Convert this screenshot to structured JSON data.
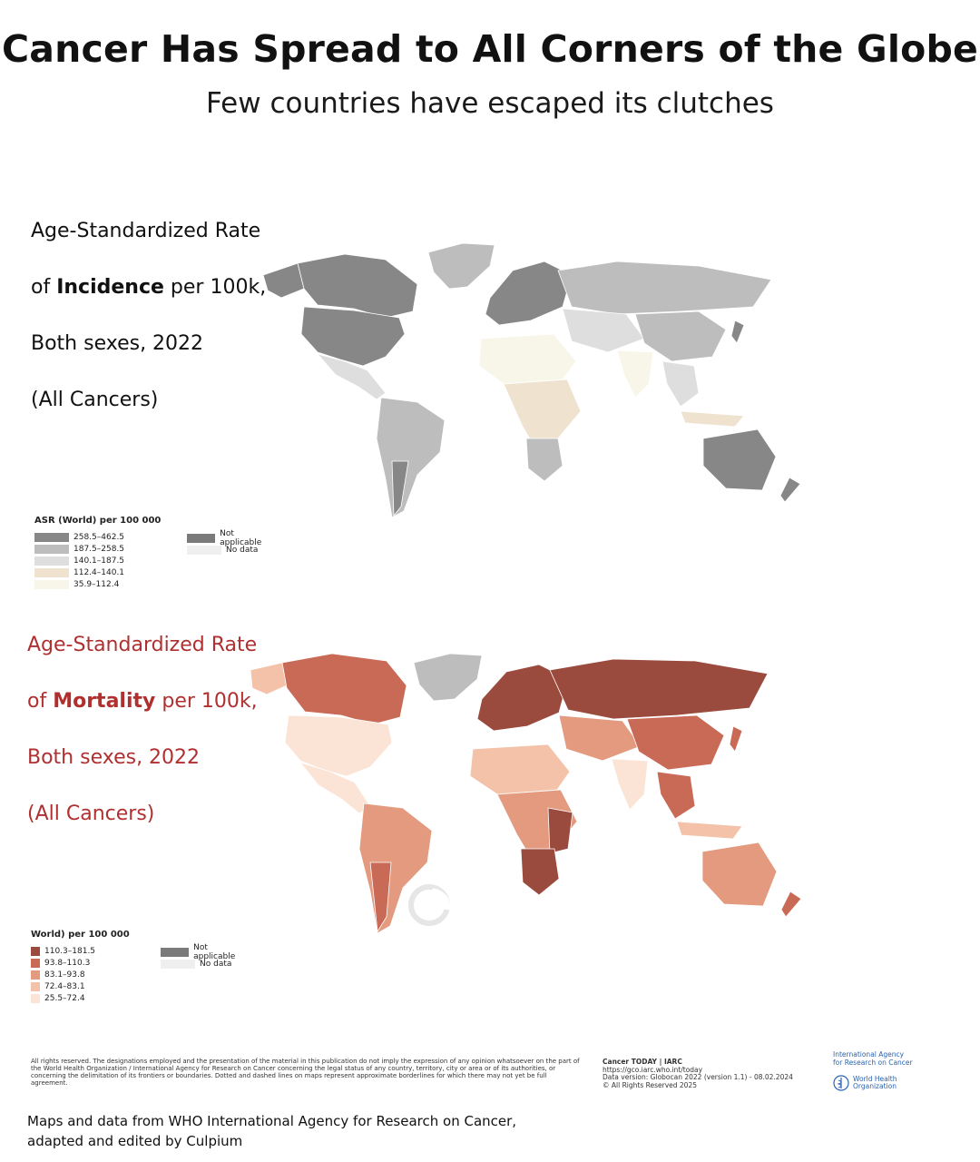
{
  "title": "Cancer Has Spread to All Corners of the Globe",
  "subtitle": "Few countries have escaped its clutches",
  "incidence": {
    "label_line1": "Age-Standardized Rate",
    "label_line2_pre": "of ",
    "label_line2_bold": "Incidence",
    "label_line2_post": " per 100k,",
    "label_line3": "Both sexes, 2022",
    "label_line4": "(All Cancers)",
    "legend_title": "ASR (World) per 100 000",
    "legend": [
      {
        "range": "258.5–462.5",
        "color": "#878787"
      },
      {
        "range": "187.5–258.5",
        "color": "#bdbdbd"
      },
      {
        "range": "140.1–187.5",
        "color": "#dedede"
      },
      {
        "range": "112.4–140.1",
        "color": "#efe3d0"
      },
      {
        "range": "35.9–112.4",
        "color": "#f8f6e9"
      }
    ],
    "not_applicable": "Not applicable",
    "no_data": "No data",
    "not_applicable_color": "#7a7a7a",
    "no_data_color": "#efefef"
  },
  "mortality": {
    "label_line1": "Age-Standardized Rate",
    "label_line2_pre": "of ",
    "label_line2_bold": "Mortality",
    "label_line2_post": " per 100k,",
    "label_line3": "Both sexes, 2022",
    "label_line4": "(All Cancers)",
    "label_color": "#b03030",
    "legend_title": "World) per 100 000",
    "legend": [
      {
        "range": "110.3–181.5",
        "color": "#9b4a3e"
      },
      {
        "range": "93.8–110.3",
        "color": "#c96a56"
      },
      {
        "range": "83.1–93.8",
        "color": "#e39a7f"
      },
      {
        "range": "72.4–83.1",
        "color": "#f3c2a8"
      },
      {
        "range": "25.5–72.4",
        "color": "#fbe4d6"
      }
    ],
    "not_applicable": "Not applicable",
    "no_data": "No data",
    "not_applicable_color": "#7a7a7a",
    "no_data_color": "#efefef"
  },
  "footer": {
    "disclaimer": "All rights reserved. The designations employed and the presentation of the material in this publication do not imply the expression of any opinion whatsoever on the part of the World Health Organization / International Agency for Research on Cancer concerning the legal status of any country, territory, city or area or of its authorities, or concerning the delimitation of its frontiers or boundaries. Dotted and dashed lines on maps represent approximate borderlines for which there may not yet be full agreement.",
    "ct_title": "Cancer TODAY | IARC",
    "ct_url": "https://gco.iarc.who.int/today",
    "ct_version": "Data version: Globocan 2022 (version 1.1) - 08.02.2024",
    "ct_rights": "© All Rights Reserved 2025",
    "iarc_line1": "International Agency",
    "iarc_line2": "for Research on Cancer",
    "who_line1": "World Health",
    "who_line2": "Organization"
  },
  "credit_line1": "Maps and data  from WHO International Agency for Research on Cancer,",
  "credit_line2": "adapted and edited by Culpium"
}
